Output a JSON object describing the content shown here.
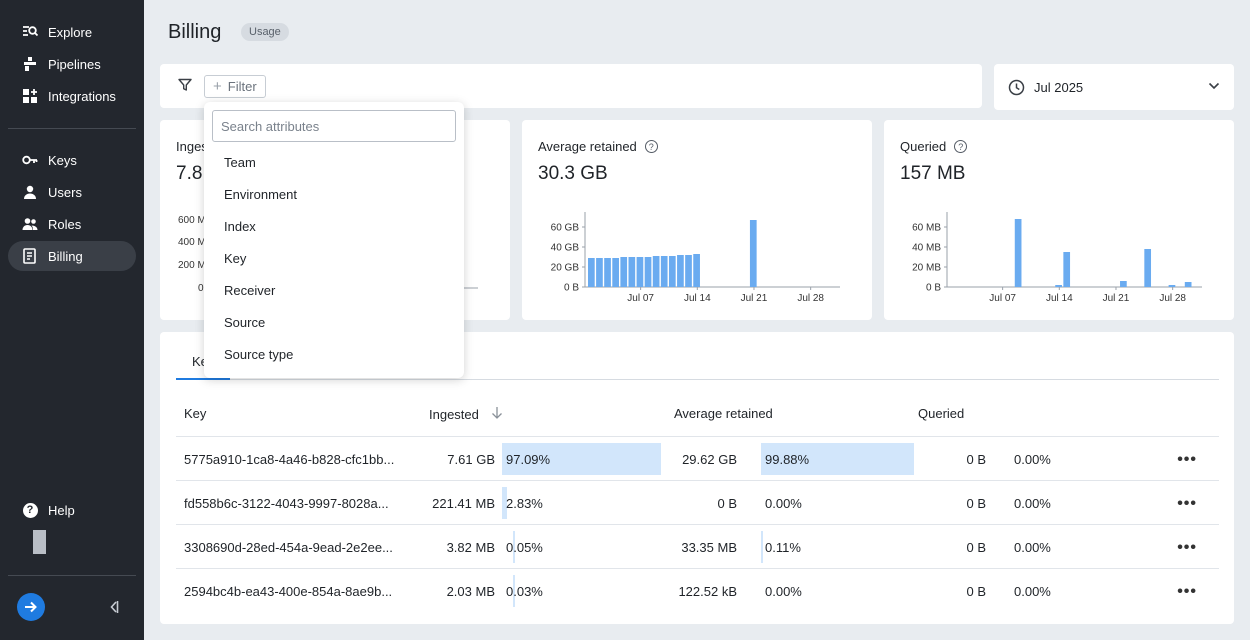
{
  "nav": {
    "items": [
      {
        "label": "Explore",
        "icon": "explore-icon"
      },
      {
        "label": "Pipelines",
        "icon": "pipelines-icon"
      },
      {
        "label": "Integrations",
        "icon": "integrations-icon"
      },
      {
        "label": "Keys",
        "icon": "key-icon"
      },
      {
        "label": "Users",
        "icon": "user-icon"
      },
      {
        "label": "Roles",
        "icon": "roles-icon"
      },
      {
        "label": "Billing",
        "icon": "billing-icon"
      }
    ],
    "help_label": "Help"
  },
  "header": {
    "title": "Billing",
    "badge": "Usage"
  },
  "filter": {
    "button_label": "Filter"
  },
  "date_picker": {
    "value": "Jul 2025"
  },
  "cards": {
    "ingested": {
      "title": "Ingested",
      "value": "7.8"
    },
    "retained": {
      "title": "Average retained",
      "value": "30.3 GB"
    },
    "queried": {
      "title": "Queried",
      "value": "157 MB"
    }
  },
  "chart_data": [
    {
      "type": "bar",
      "title": "Ingested",
      "y_ticks": [
        "600 M",
        "400 M",
        "200 M",
        "0"
      ],
      "partially_hidden": true
    },
    {
      "type": "bar",
      "title": "Average retained",
      "y_ticks": [
        "60 GB",
        "40 GB",
        "20 GB",
        "0 B"
      ],
      "x_ticks": [
        "Jul 07",
        "Jul 14",
        "Jul 21",
        "Jul 28"
      ],
      "ylim": [
        0,
        75
      ],
      "unit": "GB",
      "x": [
        1,
        2,
        3,
        4,
        5,
        6,
        7,
        8,
        9,
        10,
        11,
        12,
        13,
        14,
        15,
        16,
        17,
        18,
        19,
        20,
        21,
        22,
        23,
        24,
        25,
        26,
        27,
        28,
        29,
        30,
        31
      ],
      "values": [
        29,
        29,
        29,
        29,
        30,
        30,
        30,
        30,
        31,
        31,
        31,
        32,
        32,
        33,
        0,
        0,
        0,
        0,
        0,
        0,
        67,
        0,
        0,
        0,
        0,
        0,
        0,
        0,
        0,
        0,
        0
      ]
    },
    {
      "type": "bar",
      "title": "Queried",
      "y_ticks": [
        "60 MB",
        "40 MB",
        "20 MB",
        "0 B"
      ],
      "x_ticks": [
        "Jul 07",
        "Jul 14",
        "Jul 21",
        "Jul 28"
      ],
      "ylim": [
        0,
        75
      ],
      "unit": "MB",
      "x": [
        1,
        2,
        3,
        4,
        5,
        6,
        7,
        8,
        9,
        10,
        11,
        12,
        13,
        14,
        15,
        16,
        17,
        18,
        19,
        20,
        21,
        22,
        23,
        24,
        25,
        26,
        27,
        28,
        29,
        30,
        31
      ],
      "values": [
        0,
        0,
        0,
        0,
        0,
        0,
        0,
        0,
        68,
        0,
        0,
        0,
        0,
        2,
        35,
        0,
        0,
        0,
        0,
        0,
        0,
        6,
        0,
        0,
        38,
        0,
        0,
        2,
        0,
        5,
        0
      ]
    }
  ],
  "table": {
    "tab_label": "Ke",
    "headers": {
      "key": "Key",
      "ingested": "Ingested",
      "retained": "Average retained",
      "queried": "Queried"
    },
    "rows": [
      {
        "key": "5775a910-1ca8-4a46-b828-cfc1bb...",
        "ingested": "7.61 GB",
        "ingested_pct": "97.09%",
        "ingested_frac": 0.9709,
        "retained": "29.62 GB",
        "retained_pct": "99.88%",
        "retained_frac": 0.9988,
        "queried": "0 B",
        "queried_pct": "0.00%"
      },
      {
        "key": "fd558b6c-3122-4043-9997-8028a...",
        "ingested": "221.41 MB",
        "ingested_pct": "2.83%",
        "ingested_frac": 0.0283,
        "retained": "0 B",
        "retained_pct": "0.00%",
        "retained_frac": 0,
        "queried": "0 B",
        "queried_pct": "0.00%"
      },
      {
        "key": "3308690d-28ed-454a-9ead-2e2ee...",
        "ingested": "3.82 MB",
        "ingested_pct": "0.05%",
        "ingested_frac": 0.0005,
        "retained": "33.35 MB",
        "retained_pct": "0.11%",
        "retained_frac": 0.0011,
        "queried": "0 B",
        "queried_pct": "0.00%"
      },
      {
        "key": "2594bc4b-ea43-400e-854a-8ae9b...",
        "ingested": "2.03 MB",
        "ingested_pct": "0.03%",
        "ingested_frac": 0.0003,
        "retained": "122.52 kB",
        "retained_pct": "0.00%",
        "retained_frac": 0,
        "queried": "0 B",
        "queried_pct": "0.00%"
      }
    ]
  },
  "dropdown": {
    "search_placeholder": "Search attributes",
    "items": [
      "Team",
      "Environment",
      "Index",
      "Key",
      "Receiver",
      "Source",
      "Source type"
    ]
  },
  "colors": {
    "accent": "#1f7be0",
    "bar": "#6aabf0",
    "bar_bg": "#d2e6fb",
    "sidebar": "#23272e"
  }
}
